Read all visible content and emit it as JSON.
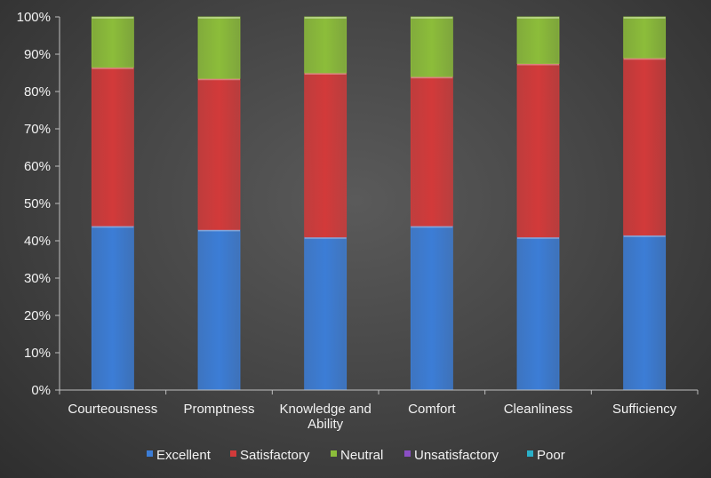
{
  "chart_data": {
    "type": "bar",
    "stacked": true,
    "percent_stacked": true,
    "categories": [
      [
        "Courteousness"
      ],
      [
        "Promptness"
      ],
      [
        "Knowledge and",
        "Ability"
      ],
      [
        "Comfort"
      ],
      [
        "Cleanliness"
      ],
      [
        "Sufficiency"
      ]
    ],
    "ylim": [
      0,
      100
    ],
    "yticks": [
      "0%",
      "10%",
      "20%",
      "30%",
      "40%",
      "50%",
      "60%",
      "70%",
      "80%",
      "90%",
      "100%"
    ],
    "grid": false,
    "legend_position": "bottom",
    "series": [
      {
        "name": "Excellent",
        "color": "#3c7dd6",
        "values": [
          44,
          43,
          41,
          44,
          41,
          41.5
        ]
      },
      {
        "name": "Satisfactory",
        "color": "#d23a3a",
        "values": [
          42.5,
          40.5,
          44,
          40,
          46.5,
          47.5
        ]
      },
      {
        "name": "Neutral",
        "color": "#8cbd3a",
        "values": [
          13.5,
          16.5,
          15,
          16,
          12.5,
          11
        ]
      },
      {
        "name": "Unsatisfactory",
        "color": "#8a4fc4",
        "values": [
          0,
          0,
          0,
          0,
          0,
          0
        ]
      },
      {
        "name": "Poor",
        "color": "#2ab0c8",
        "values": [
          0,
          0,
          0,
          0,
          0,
          0
        ]
      }
    ]
  }
}
